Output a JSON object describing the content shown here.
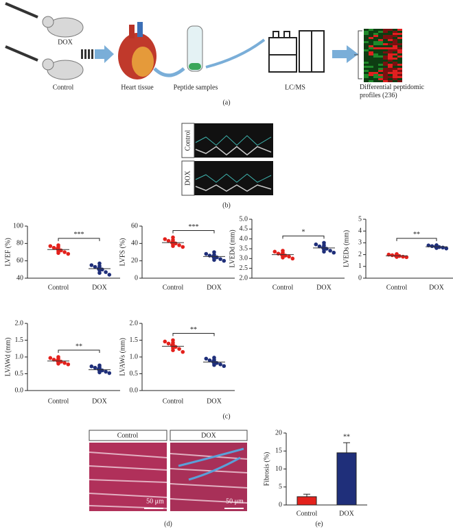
{
  "panel_a": {
    "dox_label": "DOX",
    "control_label": "Control",
    "steps": [
      "Heart tissue",
      "Peptide samples",
      "LC/MS",
      "Differential peptidomic profiles (236)"
    ],
    "caption": "(a)"
  },
  "panel_b": {
    "rows": [
      "Control",
      "DOX"
    ],
    "caption": "(b)"
  },
  "panel_c": {
    "caption": "(c)"
  },
  "panel_d": {
    "columns": [
      "Control",
      "DOX"
    ],
    "scale_bar": "50 μm",
    "caption": "(d)"
  },
  "panel_e": {
    "caption": "(e)"
  },
  "chart_data": [
    {
      "type": "dot",
      "ylabel": "LVEF (%)",
      "ylim": [
        40,
        100
      ],
      "yticks": [
        40,
        60,
        80,
        100
      ],
      "categories": [
        "Control",
        "DOX"
      ],
      "colors": [
        "#e3211c",
        "#1f2f7a"
      ],
      "values": [
        [
          78,
          77,
          76,
          75,
          74,
          74,
          73,
          72,
          71,
          70,
          69,
          68
        ],
        [
          57,
          55,
          54,
          53,
          52,
          51,
          50,
          50,
          49,
          47,
          46,
          44
        ]
      ],
      "means": [
        73,
        51
      ],
      "significance": "***"
    },
    {
      "type": "dot",
      "ylabel": "LVFS (%)",
      "ylim": [
        0,
        60
      ],
      "yticks": [
        0,
        20,
        40,
        60
      ],
      "categories": [
        "Control",
        "DOX"
      ],
      "colors": [
        "#e3211c",
        "#1f2f7a"
      ],
      "values": [
        [
          47,
          45,
          44,
          43,
          42,
          41,
          41,
          40,
          39,
          38,
          37,
          36
        ],
        [
          30,
          28,
          27,
          26,
          25,
          25,
          24,
          24,
          23,
          22,
          21,
          20
        ]
      ],
      "means": [
        41,
        25
      ],
      "significance": "***"
    },
    {
      "type": "dot",
      "ylabel": "LVEDd (mm)",
      "ylim": [
        2,
        5
      ],
      "yticks": [
        {
          "value": 2,
          "label": "2.0"
        },
        2.5,
        {
          "value": 3,
          "label": "3.0"
        },
        3.5,
        {
          "value": 4,
          "label": "4.0"
        },
        4.5,
        {
          "value": 5,
          "label": "5.0"
        }
      ],
      "categories": [
        "Control",
        "DOX"
      ],
      "colors": [
        "#e3211c",
        "#1f2f7a"
      ],
      "values": [
        [
          3.4,
          3.35,
          3.3,
          3.25,
          3.22,
          3.2,
          3.18,
          3.15,
          3.12,
          3.1,
          3.05,
          3.0
        ],
        [
          3.8,
          3.72,
          3.68,
          3.62,
          3.58,
          3.55,
          3.52,
          3.5,
          3.45,
          3.4,
          3.35,
          3.3
        ]
      ],
      "means": [
        3.2,
        3.54
      ],
      "significance": "*"
    },
    {
      "type": "dot",
      "ylabel": "LVEDs (mm)",
      "ylim": [
        0,
        5
      ],
      "yticks": [
        0,
        1,
        2,
        3,
        4,
        5
      ],
      "categories": [
        "Control",
        "DOX"
      ],
      "colors": [
        "#e3211c",
        "#1f2f7a"
      ],
      "values": [
        [
          2.05,
          2.0,
          1.98,
          1.95,
          1.93,
          1.9,
          1.9,
          1.88,
          1.85,
          1.82,
          1.8,
          1.78
        ],
        [
          2.8,
          2.78,
          2.75,
          2.72,
          2.7,
          2.68,
          2.66,
          2.64,
          2.62,
          2.6,
          2.56,
          2.52
        ]
      ],
      "means": [
        1.9,
        2.67
      ],
      "significance": "**"
    },
    {
      "type": "dot",
      "ylabel": "LVAWd (mm)",
      "ylim": [
        0,
        2
      ],
      "yticks": [
        {
          "value": 0,
          "label": "0.0"
        },
        0.5,
        {
          "value": 1,
          "label": "1.0"
        },
        1.5,
        {
          "value": 2,
          "label": "2.0"
        }
      ],
      "categories": [
        "Control",
        "DOX"
      ],
      "colors": [
        "#e3211c",
        "#1f2f7a"
      ],
      "values": [
        [
          1.0,
          0.97,
          0.95,
          0.92,
          0.9,
          0.89,
          0.88,
          0.86,
          0.84,
          0.82,
          0.8,
          0.78
        ],
        [
          0.75,
          0.72,
          0.7,
          0.68,
          0.66,
          0.64,
          0.62,
          0.6,
          0.58,
          0.56,
          0.54,
          0.52
        ]
      ],
      "means": [
        0.88,
        0.62
      ],
      "significance": "**"
    },
    {
      "type": "dot",
      "ylabel": "LVAWs (mm)",
      "ylim": [
        0,
        2
      ],
      "yticks": [
        {
          "value": 0,
          "label": "0.0"
        },
        0.5,
        {
          "value": 1,
          "label": "1.0"
        },
        1.5,
        {
          "value": 2,
          "label": "2.0"
        }
      ],
      "categories": [
        "Control",
        "DOX"
      ],
      "colors": [
        "#e3211c",
        "#1f2f7a"
      ],
      "values": [
        [
          1.5,
          1.46,
          1.43,
          1.4,
          1.37,
          1.35,
          1.32,
          1.3,
          1.27,
          1.24,
          1.2,
          1.15
        ],
        [
          0.98,
          0.95,
          0.92,
          0.9,
          0.88,
          0.86,
          0.84,
          0.82,
          0.8,
          0.78,
          0.76,
          0.73
        ]
      ],
      "means": [
        1.32,
        0.85
      ],
      "significance": "**"
    },
    {
      "type": "bar",
      "ylabel": "Fibrosis (%)",
      "ylim": [
        0,
        20
      ],
      "yticks": [
        0,
        5,
        10,
        15,
        20
      ],
      "categories": [
        "Control",
        "DOX"
      ],
      "colors": [
        "#e3211c",
        "#1f2f7a"
      ],
      "values": [
        2.3,
        14.5
      ],
      "errors": [
        0.7,
        2.8
      ],
      "significance": "**"
    }
  ]
}
